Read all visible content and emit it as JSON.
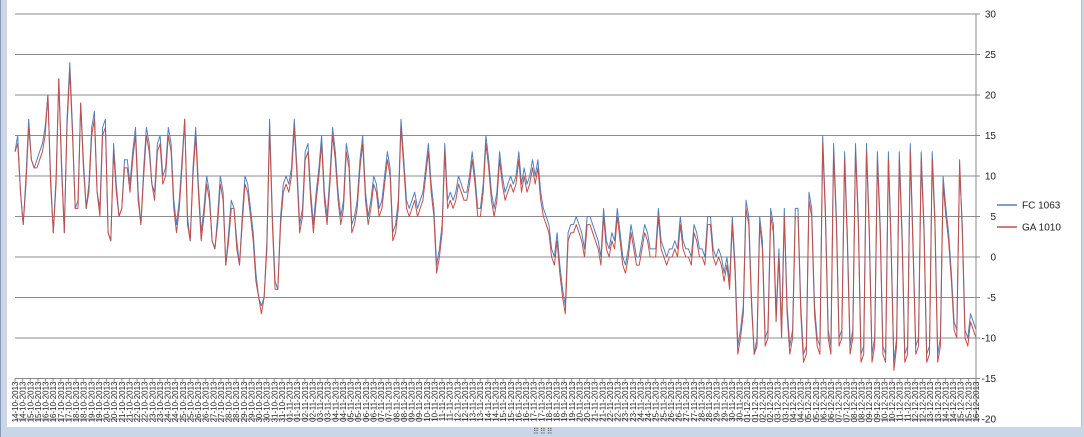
{
  "chart_data": {
    "type": "line",
    "title": "",
    "xlabel": "",
    "ylabel": "",
    "ylim": [
      -20,
      30
    ],
    "yticks": [
      30,
      25,
      20,
      15,
      10,
      5,
      0,
      -5,
      -10,
      -15,
      -20
    ],
    "grid": true,
    "legend_position": "right",
    "x_tick_labels": [
      "14-10-2013",
      "14-10-2013",
      "15-10-2013",
      "15-10-2013",
      "16-10-2013",
      "16-10-2013",
      "17-10-2013",
      "17-10-2013",
      "18-10-2013",
      "18-10-2013",
      "19-10-2013",
      "19-10-2013",
      "20-10-2013",
      "20-10-2013",
      "21-10-2013",
      "21-10-2013",
      "22-10-2013",
      "22-10-2013",
      "23-10-2013",
      "23-10-2013",
      "24-10-2013",
      "24-10-2013",
      "25-10-2013",
      "25-10-2013",
      "26-10-2013",
      "26-10-2013",
      "27-10-2013",
      "27-10-2013",
      "28-10-2013",
      "28-10-2013",
      "29-10-2013",
      "29-10-2013",
      "30-10-2013",
      "30-10-2013",
      "31-10-2013",
      "31-10-2013",
      "01-11-2013",
      "01-11-2013",
      "02-11-2013",
      "02-11-2013",
      "03-11-2013",
      "03-11-2013",
      "04-11-2013",
      "04-11-2013",
      "05-11-2013",
      "05-11-2013",
      "06-11-2013",
      "06-11-2013",
      "07-11-2013",
      "07-11-2013",
      "08-11-2013",
      "08-11-2013",
      "09-11-2013",
      "09-11-2013",
      "10-11-2013",
      "10-11-2013",
      "11-11-2013",
      "11-11-2013",
      "12-11-2013",
      "12-11-2013",
      "13-11-2013",
      "13-11-2013",
      "14-11-2013",
      "14-11-2013",
      "15-11-2013",
      "15-11-2013",
      "16-11-2013",
      "16-11-2013",
      "17-11-2013",
      "17-11-2013",
      "18-11-2013",
      "18-11-2013",
      "19-11-2013",
      "19-11-2013",
      "20-11-2013",
      "20-11-2013",
      "21-11-2013",
      "21-11-2013",
      "22-11-2013",
      "22-11-2013",
      "23-11-2013",
      "23-11-2013",
      "24-11-2013",
      "24-11-2013",
      "25-11-2013",
      "25-11-2013",
      "26-11-2013",
      "26-11-2013",
      "27-11-2013",
      "27-11-2013",
      "28-11-2013",
      "28-11-2013",
      "29-11-2013",
      "29-11-2013",
      "30-11-2013",
      "30-11-2013",
      "01-12-2013",
      "01-12-2013",
      "02-12-2013",
      "02-12-2013",
      "03-12-2013",
      "03-12-2013",
      "04-12-2013",
      "04-12-2013",
      "05-12-2013",
      "05-12-2013",
      "06-12-2013",
      "06-12-2013",
      "07-12-2013",
      "07-12-2013",
      "08-12-2013",
      "08-12-2013",
      "09-12-2013",
      "09-12-2013",
      "10-12-2013",
      "10-12-2013",
      "11-12-2013",
      "11-12-2013",
      "12-12-2013",
      "12-12-2013",
      "13-12-2013",
      "13-12-2013",
      "14-12-2013",
      "14-12-2013",
      "15-12-2013",
      "15-12-2013",
      "16-12-2013"
    ],
    "series": [
      {
        "name": "FC 1063",
        "color": "#4f81bd",
        "values": [
          13,
          15,
          8,
          4,
          10,
          17,
          12,
          11,
          12,
          13,
          14,
          16,
          20,
          10,
          3,
          10,
          22,
          12,
          3,
          17,
          24,
          16,
          6,
          7,
          19,
          12,
          6,
          9,
          16,
          18,
          8,
          6,
          16,
          17,
          3,
          2,
          14,
          9,
          5,
          6,
          12,
          12,
          9,
          13,
          16,
          8,
          4,
          11,
          16,
          14,
          9,
          8,
          14,
          15,
          10,
          11,
          16,
          14,
          7,
          4,
          7,
          12,
          17,
          5,
          2,
          11,
          16,
          9,
          3,
          6,
          10,
          8,
          2,
          1,
          5,
          10,
          8,
          -1,
          3,
          7,
          6,
          2,
          -1,
          5,
          10,
          9,
          6,
          3,
          -2,
          -5,
          -6,
          -5,
          2,
          17,
          5,
          -3,
          -4,
          5,
          9,
          10,
          9,
          11,
          17,
          11,
          4,
          6,
          13,
          14,
          8,
          4,
          8,
          11,
          15,
          8,
          5,
          10,
          16,
          13,
          8,
          5,
          7,
          14,
          12,
          4,
          5,
          7,
          12,
          15,
          8,
          5,
          7,
          10,
          9,
          6,
          7,
          10,
          13,
          11,
          3,
          4,
          7,
          17,
          12,
          7,
          6,
          7,
          8,
          6,
          7,
          8,
          11,
          14,
          9,
          6,
          -1,
          1,
          4,
          14,
          7,
          8,
          7,
          8,
          10,
          9,
          8,
          8,
          10,
          13,
          10,
          6,
          6,
          9,
          15,
          12,
          8,
          6,
          8,
          13,
          10,
          8,
          9,
          10,
          9,
          10,
          13,
          9,
          11,
          9,
          10,
          12,
          10,
          12,
          8,
          6,
          5,
          4,
          1,
          0,
          3,
          -1,
          -4,
          -6,
          3,
          4,
          4,
          5,
          4,
          3,
          1,
          5,
          5,
          4,
          3,
          2,
          0,
          6,
          2,
          1,
          3,
          2,
          6,
          3,
          0,
          -1,
          1,
          4,
          2,
          0,
          0,
          2,
          4,
          3,
          1,
          1,
          1,
          6,
          2,
          1,
          0,
          1,
          1,
          2,
          1,
          5,
          2,
          1,
          1,
          0,
          4,
          3,
          1,
          1,
          0,
          5,
          5,
          1,
          0,
          1,
          0,
          -2,
          0,
          -3,
          5,
          -1,
          -11,
          -9,
          -6,
          7,
          5,
          -5,
          -12,
          -10,
          5,
          2,
          -10,
          -9,
          6,
          4,
          -7,
          1,
          -9,
          6,
          -6,
          -11,
          -9,
          6,
          6,
          -6,
          -12,
          -11,
          8,
          6,
          -6,
          -10,
          -11,
          15,
          6,
          -9,
          -11,
          14,
          5,
          -10,
          -9,
          13,
          3,
          -11,
          -9,
          14,
          5,
          -12,
          -11,
          14,
          4,
          -12,
          -10,
          13,
          4,
          -11,
          -12,
          13,
          2,
          -13,
          -10,
          13,
          3,
          -12,
          -11,
          14,
          2,
          -11,
          -10,
          13,
          4,
          -12,
          -11,
          13,
          5,
          -12,
          -10,
          10,
          6,
          3,
          -2,
          -8,
          -9,
          11,
          4,
          -9,
          -10,
          -7,
          -8,
          -9
        ]
      },
      {
        "name": "GA 1010",
        "color": "#c0504d",
        "values": [
          13,
          14,
          8,
          4,
          9,
          16,
          12,
          11,
          11,
          12,
          13,
          15,
          20,
          9,
          3,
          9,
          22,
          11,
          3,
          16,
          23,
          15,
          6,
          6,
          19,
          11,
          6,
          8,
          15,
          17,
          8,
          5,
          15,
          16,
          3,
          2,
          13,
          8,
          5,
          6,
          11,
          11,
          8,
          12,
          15,
          7,
          4,
          10,
          15,
          13,
          9,
          7,
          13,
          14,
          9,
          10,
          15,
          13,
          6,
          3,
          6,
          11,
          17,
          4,
          2,
          10,
          15,
          8,
          2,
          5,
          9,
          7,
          2,
          1,
          4,
          9,
          7,
          -1,
          2,
          6,
          6,
          1,
          -1,
          4,
          9,
          8,
          5,
          2,
          -3,
          -5,
          -7,
          -5,
          1,
          16,
          4,
          -4,
          -4,
          4,
          8,
          9,
          8,
          10,
          16,
          10,
          3,
          5,
          12,
          13,
          7,
          3,
          7,
          10,
          14,
          7,
          4,
          9,
          15,
          12,
          7,
          4,
          6,
          13,
          11,
          3,
          4,
          6,
          11,
          14,
          7,
          4,
          6,
          9,
          8,
          5,
          6,
          9,
          12,
          10,
          2,
          3,
          6,
          16,
          11,
          6,
          5,
          6,
          7,
          5,
          6,
          7,
          10,
          13,
          8,
          5,
          -2,
          0,
          3,
          13,
          6,
          7,
          6,
          7,
          9,
          8,
          7,
          7,
          9,
          12,
          9,
          5,
          5,
          8,
          14,
          11,
          7,
          5,
          7,
          12,
          9,
          7,
          8,
          9,
          8,
          9,
          12,
          8,
          10,
          8,
          9,
          11,
          9,
          11,
          7,
          5,
          4,
          3,
          0,
          -1,
          2,
          -2,
          -5,
          -7,
          2,
          3,
          3,
          4,
          3,
          2,
          0,
          4,
          4,
          3,
          2,
          1,
          -1,
          5,
          1,
          0,
          2,
          1,
          5,
          2,
          -1,
          -2,
          0,
          3,
          1,
          -1,
          -1,
          1,
          3,
          2,
          0,
          0,
          0,
          5,
          1,
          0,
          -1,
          0,
          0,
          1,
          0,
          4,
          1,
          0,
          0,
          -1,
          3,
          2,
          0,
          0,
          -1,
          4,
          4,
          0,
          -1,
          0,
          -1,
          -3,
          -1,
          -4,
          4,
          -2,
          -12,
          -10,
          -7,
          6,
          4,
          -6,
          -12,
          -11,
          4,
          1,
          -11,
          -10,
          5,
          3,
          -8,
          0,
          -10,
          5,
          -7,
          -12,
          -10,
          5,
          5,
          -7,
          -13,
          -12,
          7,
          5,
          -7,
          -11,
          -12,
          14,
          5,
          -10,
          -12,
          13,
          4,
          -11,
          -10,
          12,
          2,
          -12,
          -10,
          13,
          4,
          -13,
          -12,
          13,
          3,
          -13,
          -11,
          12,
          3,
          -12,
          -13,
          12,
          1,
          -14,
          -11,
          12,
          2,
          -13,
          -12,
          13,
          1,
          -12,
          -11,
          12,
          3,
          -13,
          -12,
          12,
          4,
          -13,
          -11,
          9,
          5,
          2,
          -3,
          -9,
          -10,
          12,
          3,
          -10,
          -11,
          -8,
          -9,
          -10
        ]
      }
    ]
  }
}
